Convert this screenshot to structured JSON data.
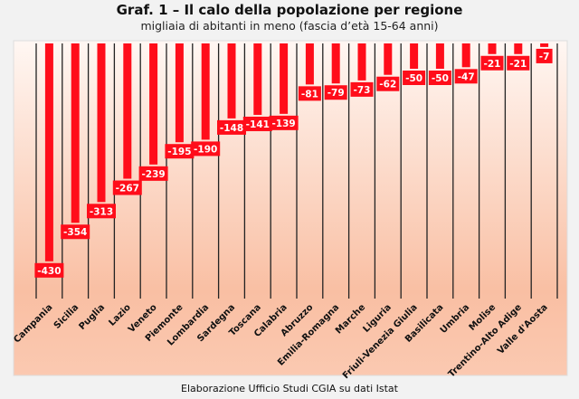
{
  "chart_data": {
    "type": "bar",
    "title": "Graf. 1 – Il calo della popolazione per regione",
    "subtitle": "migliaia di abitanti in meno (fascia d’età 15-64 anni)",
    "source": "Elaborazione Ufficio Studi CGIA su dati Istat",
    "categories": [
      "Campania",
      "Sicilia",
      "Puglia",
      "Lazio",
      "Veneto",
      "Piemonte",
      "Lombardia",
      "Sardegna",
      "Toscana",
      "Calabria",
      "Abruzzo",
      "Emilia-Romagna",
      "Marche",
      "Liguria",
      "Friuli-Venezia Giulia",
      "Basilicata",
      "Umbria",
      "Molise",
      "Trentino-Alto Adige",
      "Valle d'Aosta"
    ],
    "values": [
      -430,
      -354,
      -313,
      -267,
      -239,
      -195,
      -190,
      -148,
      -141,
      -139,
      -81,
      -79,
      -73,
      -62,
      -50,
      -50,
      -47,
      -21,
      -21,
      -7
    ],
    "bar_color": "#ff0d1a",
    "grid": false,
    "data_labels": true
  }
}
